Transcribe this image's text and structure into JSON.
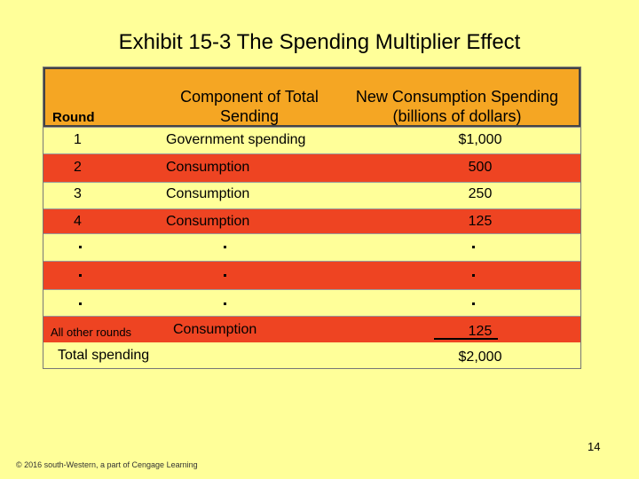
{
  "title": "Exhibit 15-3 The Spending Multiplier Effect",
  "header": {
    "round": "Round",
    "component_line1": "Component of Total",
    "component_line2": "Sending",
    "new_line1": "New Consumption Spending",
    "new_line2": "(billions of dollars)"
  },
  "rows": [
    {
      "round": "1",
      "component": "Government spending",
      "amount": "$1,000"
    },
    {
      "round": "2",
      "component": "Consumption",
      "amount": "500"
    },
    {
      "round": "3",
      "component": "Consumption",
      "amount": "250"
    },
    {
      "round": "4",
      "component": "Consumption",
      "amount": "125"
    }
  ],
  "other_rounds": {
    "round": "All other rounds",
    "component": "Consumption",
    "amount": "125"
  },
  "total": {
    "label": "Total spending",
    "amount": "$2,000"
  },
  "page_number": "14",
  "footer": "© 2016 south-Western, a part of Cengage Learning",
  "colors": {
    "background": "#ffff99",
    "header": "#f5a623",
    "row_red": "#ee4422"
  }
}
